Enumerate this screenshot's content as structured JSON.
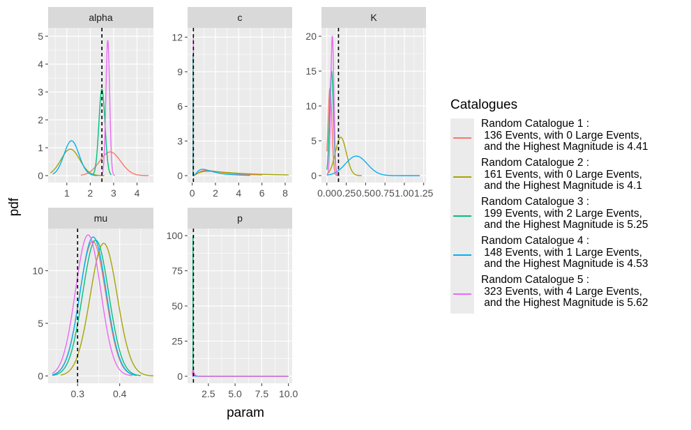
{
  "chart_data": {
    "type": "line",
    "xlabel": "param",
    "ylabel": "pdf",
    "legend": {
      "title": "Catalogues",
      "placement": "right",
      "entries": [
        {
          "name": "Random Catalogue 1 :\n 136 Events, with 0 Large Events,\n and the Highest Magnitude is 4.41",
          "color": "#F8766D"
        },
        {
          "name": "Random Catalogue 2 :\n 161 Events, with 0 Large Events,\n and the Highest Magnitude is 4.1",
          "color": "#A3A500"
        },
        {
          "name": "Random Catalogue 3 :\n 199 Events, with 2 Large Events,\n and the Highest Magnitude is 5.25",
          "color": "#00BF7D"
        },
        {
          "name": "Random Catalogue 4 :\n 148 Events, with 1 Large Events,\n and the Highest Magnitude is 4.53",
          "color": "#00B0F6"
        },
        {
          "name": "Random Catalogue 5 :\n 323 Events, with 4 Large Events,\n and the Highest Magnitude is 5.62",
          "color": "#E76BF3"
        }
      ]
    },
    "facets": [
      {
        "title": "alpha",
        "xlim": [
          0.2,
          4.7
        ],
        "ylim": [
          -0.25,
          5.3
        ],
        "xticks": [
          {
            "v": 1,
            "label": "1"
          },
          {
            "v": 2,
            "label": "2"
          },
          {
            "v": 3,
            "label": "3"
          },
          {
            "v": 4,
            "label": "4"
          }
        ],
        "yticks": [
          {
            "v": 0,
            "label": "0"
          },
          {
            "v": 1,
            "label": "1"
          },
          {
            "v": 2,
            "label": "2"
          },
          {
            "v": 3,
            "label": "3"
          },
          {
            "v": 4,
            "label": "4"
          },
          {
            "v": 5,
            "label": "5"
          }
        ],
        "true_value": 2.5,
        "series": [
          {
            "kind": "normal",
            "mean": 2.85,
            "sd": 0.45,
            "peak": 0.85,
            "range": [
              1.6,
              4.5
            ]
          },
          {
            "kind": "normal",
            "mean": 1.15,
            "sd": 0.4,
            "peak": 0.95,
            "range": [
              0.3,
              2.6
            ]
          },
          {
            "kind": "normal",
            "mean": 2.5,
            "sd": 0.13,
            "peak": 3.1,
            "range": [
              2.1,
              2.9
            ]
          },
          {
            "kind": "normal",
            "mean": 1.2,
            "sd": 0.32,
            "peak": 1.25,
            "range": [
              0.4,
              2.3
            ]
          },
          {
            "kind": "normal",
            "mean": 2.75,
            "sd": 0.08,
            "peak": 4.85,
            "range": [
              2.45,
              3.05
            ]
          }
        ]
      },
      {
        "title": "c",
        "xlim": [
          -0.4,
          8.6
        ],
        "ylim": [
          -0.6,
          12.8
        ],
        "xticks": [
          {
            "v": 0,
            "label": "0"
          },
          {
            "v": 2,
            "label": "2"
          },
          {
            "v": 4,
            "label": "4"
          },
          {
            "v": 6,
            "label": "6"
          },
          {
            "v": 8,
            "label": "8"
          }
        ],
        "yticks": [
          {
            "v": 0,
            "label": "0"
          },
          {
            "v": 3,
            "label": "3"
          },
          {
            "v": 6,
            "label": "6"
          },
          {
            "v": 9,
            "label": "9"
          },
          {
            "v": 12,
            "label": "12"
          }
        ],
        "true_value": 0.1,
        "series": [
          {
            "kind": "lognormal",
            "mode": 1.2,
            "s": 0.8,
            "peak": 0.45,
            "range": [
              0.02,
              6
            ]
          },
          {
            "kind": "lognormal",
            "mode": 1.4,
            "s": 0.95,
            "peak": 0.38,
            "range": [
              0.02,
              8.3
            ]
          },
          {
            "kind": "spike",
            "x": 0.06,
            "peak": 10.5
          },
          {
            "kind": "lognormal",
            "mode": 0.9,
            "s": 0.7,
            "peak": 0.55,
            "range": [
              0.02,
              5
            ]
          },
          {
            "kind": "spike",
            "x": 0.09,
            "peak": 12.0
          }
        ]
      },
      {
        "title": "K",
        "xlim": [
          -0.07,
          1.28
        ],
        "ylim": [
          -1.0,
          21.2
        ],
        "xticks": [
          {
            "v": 0,
            "label": "0.00"
          },
          {
            "v": 0.25,
            "label": "0.25"
          },
          {
            "v": 0.5,
            "label": "0.50"
          },
          {
            "v": 0.75,
            "label": "0.75"
          },
          {
            "v": 1.0,
            "label": "1.00"
          },
          {
            "v": 1.25,
            "label": "1.25"
          }
        ],
        "yticks": [
          {
            "v": 0,
            "label": "0"
          },
          {
            "v": 5,
            "label": "5"
          },
          {
            "v": 10,
            "label": "10"
          },
          {
            "v": 15,
            "label": "15"
          },
          {
            "v": 20,
            "label": "20"
          }
        ],
        "true_value": 0.15,
        "series": [
          {
            "kind": "normal",
            "mean": 0.04,
            "sd": 0.025,
            "peak": 12.5,
            "range": [
              0.0,
              0.14
            ]
          },
          {
            "kind": "normal",
            "mean": 0.18,
            "sd": 0.07,
            "peak": 5.5,
            "range": [
              0.0,
              0.45
            ]
          },
          {
            "kind": "normal",
            "mean": 0.06,
            "sd": 0.025,
            "peak": 15.0,
            "range": [
              0.0,
              0.16
            ]
          },
          {
            "kind": "normal",
            "mean": 0.38,
            "sd": 0.14,
            "peak": 2.8,
            "range": [
              0.0,
              1.2
            ]
          },
          {
            "kind": "normal",
            "mean": 0.07,
            "sd": 0.02,
            "peak": 20.0,
            "range": [
              0.0,
              0.16
            ]
          }
        ]
      },
      {
        "title": "mu",
        "xlim": [
          0.23,
          0.48
        ],
        "ylim": [
          -0.7,
          14.0
        ],
        "xticks": [
          {
            "v": 0.3,
            "label": "0.3"
          },
          {
            "v": 0.4,
            "label": "0.4"
          }
        ],
        "yticks": [
          {
            "v": 0,
            "label": "0"
          },
          {
            "v": 5,
            "label": "5"
          },
          {
            "v": 10,
            "label": "10"
          }
        ],
        "true_value": 0.3,
        "series": [
          {
            "kind": "normal",
            "mean": 0.336,
            "sd": 0.031,
            "peak": 12.8,
            "range": [
              0.24,
              0.44
            ]
          },
          {
            "kind": "normal",
            "mean": 0.362,
            "sd": 0.032,
            "peak": 12.6,
            "range": [
              0.26,
              0.48
            ]
          },
          {
            "kind": "normal",
            "mean": 0.343,
            "sd": 0.031,
            "peak": 12.9,
            "range": [
              0.24,
              0.45
            ]
          },
          {
            "kind": "normal",
            "mean": 0.337,
            "sd": 0.031,
            "peak": 13.2,
            "range": [
              0.24,
              0.44
            ]
          },
          {
            "kind": "normal",
            "mean": 0.325,
            "sd": 0.03,
            "peak": 13.4,
            "range": [
              0.24,
              0.43
            ]
          }
        ]
      },
      {
        "title": "p",
        "xlim": [
          0.55,
          10.35
        ],
        "ylim": [
          -5,
          105
        ],
        "xticks": [
          {
            "v": 2.5,
            "label": "2.5"
          },
          {
            "v": 5.0,
            "label": "5.0"
          },
          {
            "v": 7.5,
            "label": "7.5"
          },
          {
            "v": 10.0,
            "label": "10.0"
          }
        ],
        "yticks": [
          {
            "v": 0,
            "label": "0"
          },
          {
            "v": 25,
            "label": "25"
          },
          {
            "v": 50,
            "label": "50"
          },
          {
            "v": 75,
            "label": "75"
          },
          {
            "v": 100,
            "label": "100"
          }
        ],
        "true_value": 1.1,
        "series": [
          {
            "kind": "decay",
            "x0": 1.0,
            "peak": 4,
            "scale": 0.1,
            "range": [
              1.0,
              10.0
            ]
          },
          {
            "kind": "decay",
            "x0": 1.0,
            "peak": 3,
            "scale": 0.1,
            "range": [
              1.0,
              10.0
            ]
          },
          {
            "kind": "spike",
            "x": 1.06,
            "peak": 100
          },
          {
            "kind": "decay",
            "x0": 1.0,
            "peak": 2,
            "scale": 0.1,
            "range": [
              1.0,
              10.0
            ]
          },
          {
            "kind": "decay",
            "x0": 1.05,
            "peak": 6,
            "scale": 0.12,
            "range": [
              1.0,
              10.0
            ]
          }
        ]
      }
    ]
  }
}
